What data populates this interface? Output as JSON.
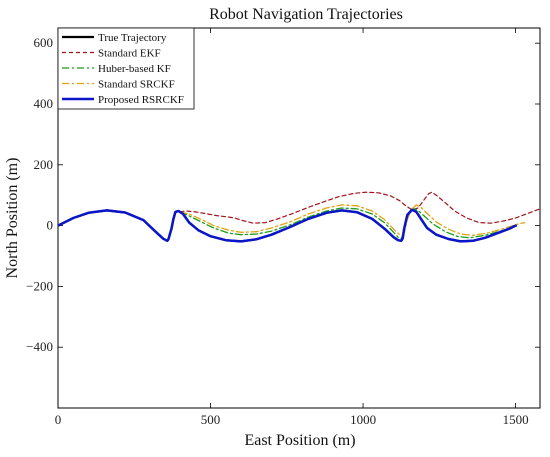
{
  "chart_data": {
    "type": "line",
    "title": "Robot Navigation Trajectories",
    "xlabel": "East Position (m)",
    "ylabel": "North Position (m)",
    "xlim": [
      0,
      1580
    ],
    "ylim": [
      -600,
      650
    ],
    "xticks": [
      0,
      500,
      1000,
      1500
    ],
    "yticks": [
      -400,
      -200,
      0,
      200,
      400,
      600
    ],
    "grid": false,
    "legend_position": "top-left",
    "series": [
      {
        "name": "True Trajectory",
        "color": "#000000",
        "dash": "solid",
        "width": 2.2,
        "x": [
          0,
          50,
          100,
          160,
          220,
          280,
          320,
          345,
          358,
          362,
          372,
          378,
          385,
          395,
          410,
          430,
          460,
          500,
          550,
          600,
          650,
          700,
          760,
          820,
          880,
          930,
          980,
          1030,
          1070,
          1100,
          1115,
          1125,
          1130,
          1135,
          1145,
          1160,
          1175,
          1190,
          1210,
          1240,
          1280,
          1320,
          1360,
          1400,
          1440,
          1480,
          1500
        ],
        "y": [
          0,
          25,
          42,
          50,
          43,
          18,
          -20,
          -43,
          -50,
          -45,
          -10,
          20,
          45,
          48,
          38,
          10,
          -15,
          -35,
          -48,
          -52,
          -45,
          -30,
          -5,
          22,
          42,
          50,
          44,
          22,
          -10,
          -38,
          -48,
          -50,
          -42,
          -10,
          35,
          52,
          45,
          22,
          -8,
          -30,
          -44,
          -52,
          -50,
          -40,
          -25,
          -10,
          0
        ]
      },
      {
        "name": "Standard EKF",
        "color": "#a0131a",
        "dash": "4,3",
        "width": 1.2,
        "x": [
          400,
          420,
          450,
          480,
          520,
          560,
          580,
          600,
          640,
          680,
          720,
          770,
          820,
          870,
          920,
          970,
          1010,
          1050,
          1090,
          1120,
          1140,
          1160,
          1180,
          1200,
          1215,
          1225,
          1240,
          1270,
          1300,
          1340,
          1380,
          1420,
          1460,
          1500,
          1540,
          1580
        ],
        "y": [
          45,
          48,
          45,
          40,
          33,
          28,
          25,
          18,
          8,
          10,
          22,
          40,
          60,
          78,
          95,
          106,
          110,
          108,
          98,
          82,
          65,
          52,
          58,
          85,
          105,
          110,
          100,
          75,
          48,
          25,
          10,
          8,
          15,
          25,
          40,
          55
        ]
      },
      {
        "name": "Huber-based KF",
        "color": "#1a9e1a",
        "dash": "7,3,2,3",
        "width": 1.3,
        "x": [
          400,
          430,
          470,
          510,
          560,
          600,
          650,
          700,
          760,
          820,
          880,
          930,
          980,
          1030,
          1070,
          1100,
          1115,
          1125,
          1132,
          1140,
          1150,
          1165,
          1180,
          1200,
          1230,
          1270,
          1310,
          1350,
          1400,
          1450,
          1500,
          1510
        ],
        "y": [
          45,
          32,
          12,
          -8,
          -25,
          -30,
          -28,
          -18,
          2,
          28,
          48,
          58,
          55,
          38,
          10,
          -22,
          -38,
          -42,
          -30,
          10,
          45,
          56,
          50,
          32,
          5,
          -20,
          -36,
          -40,
          -32,
          -18,
          -2,
          0
        ]
      },
      {
        "name": "Standard SRCKF",
        "color": "#e0a30f",
        "dash": "7,3,2,3",
        "width": 1.3,
        "x": [
          400,
          430,
          470,
          510,
          560,
          600,
          650,
          700,
          760,
          820,
          880,
          930,
          980,
          1030,
          1070,
          1100,
          1118,
          1128,
          1136,
          1145,
          1160,
          1175,
          1190,
          1210,
          1240,
          1280,
          1320,
          1360,
          1410,
          1460,
          1510,
          1530
        ],
        "y": [
          45,
          38,
          20,
          0,
          -15,
          -22,
          -20,
          -8,
          12,
          38,
          58,
          68,
          65,
          48,
          20,
          -12,
          -28,
          -32,
          -20,
          20,
          55,
          68,
          60,
          40,
          12,
          -12,
          -28,
          -32,
          -24,
          -10,
          6,
          10
        ]
      },
      {
        "name": "Proposed RSRCKF",
        "color": "#0b16c8",
        "dash": "solid",
        "width": 2.5,
        "x": [
          0,
          50,
          100,
          160,
          220,
          280,
          320,
          345,
          358,
          362,
          372,
          378,
          385,
          395,
          410,
          430,
          460,
          500,
          550,
          600,
          650,
          700,
          760,
          820,
          880,
          930,
          980,
          1030,
          1070,
          1100,
          1115,
          1125,
          1130,
          1135,
          1145,
          1160,
          1175,
          1190,
          1210,
          1240,
          1280,
          1320,
          1360,
          1400,
          1440,
          1480,
          1500
        ],
        "y": [
          0,
          25,
          42,
          50,
          43,
          18,
          -20,
          -43,
          -50,
          -45,
          -10,
          20,
          45,
          48,
          38,
          10,
          -15,
          -35,
          -48,
          -52,
          -45,
          -30,
          -5,
          22,
          42,
          50,
          44,
          22,
          -10,
          -38,
          -48,
          -50,
          -42,
          -10,
          35,
          52,
          45,
          22,
          -8,
          -30,
          -44,
          -52,
          -50,
          -40,
          -25,
          -10,
          0
        ]
      }
    ]
  }
}
